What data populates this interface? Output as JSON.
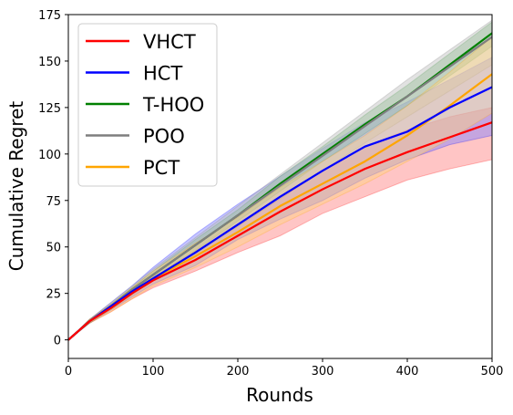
{
  "chart_data": {
    "type": "line",
    "xlabel": "Rounds",
    "ylabel": "Cumulative Regret",
    "xlim": [
      0,
      500
    ],
    "ylim": [
      -10,
      175
    ],
    "xticks": [
      0,
      100,
      200,
      300,
      400,
      500
    ],
    "yticks": [
      0,
      25,
      50,
      75,
      100,
      125,
      150,
      175
    ],
    "grid": false,
    "legend_position": "top-left",
    "x": [
      0,
      25,
      50,
      75,
      100,
      150,
      200,
      250,
      300,
      350,
      400,
      450,
      500
    ],
    "series": [
      {
        "name": "VHCT",
        "color": "#ff0000",
        "fill": "#ff7f7f",
        "values": [
          0,
          10,
          17,
          25,
          32,
          43,
          56,
          69,
          81,
          92,
          101,
          109,
          117
        ],
        "lower": [
          0,
          9,
          15,
          22,
          28,
          37,
          47,
          56,
          68,
          77,
          86,
          92,
          97
        ],
        "upper": [
          0,
          11,
          19,
          27,
          34,
          48,
          61,
          76,
          91,
          104,
          113,
          120,
          125
        ]
      },
      {
        "name": "HCT",
        "color": "#0000ff",
        "fill": "#7f7fff",
        "values": [
          0,
          10,
          18,
          26,
          33,
          47,
          62,
          77,
          91,
          104,
          112,
          125,
          136
        ],
        "lower": [
          0,
          9,
          16,
          23,
          30,
          40,
          54,
          65,
          75,
          87,
          97,
          105,
          110
        ],
        "upper": [
          0,
          11,
          20,
          29,
          39,
          57,
          73,
          88,
          103,
          117,
          128,
          140,
          152
        ]
      },
      {
        "name": "T-HOO",
        "color": "#008000",
        "fill": "#7fbf7f",
        "values": [
          0,
          10,
          18,
          27,
          35,
          51,
          67,
          84,
          100,
          116,
          131,
          148,
          165
        ],
        "lower": [
          0,
          9,
          17,
          25,
          33,
          48,
          64,
          80,
          96,
          111,
          126,
          142,
          158
        ],
        "upper": [
          0,
          11,
          19,
          28,
          37,
          54,
          70,
          88,
          104,
          121,
          137,
          154,
          171
        ]
      },
      {
        "name": "POO",
        "color": "#7f7f7f",
        "fill": "#bfbfbf",
        "values": [
          0,
          10,
          18,
          27,
          35,
          51,
          67,
          83,
          99,
          115,
          131,
          147,
          163
        ],
        "lower": [
          0,
          9,
          16,
          24,
          32,
          46,
          61,
          76,
          91,
          106,
          120,
          134,
          148
        ],
        "upper": [
          0,
          11,
          20,
          29,
          38,
          55,
          72,
          89,
          106,
          123,
          140,
          156,
          172
        ]
      },
      {
        "name": "PCT",
        "color": "#ffa500",
        "fill": "#ffd27f",
        "values": [
          0,
          10,
          17,
          25,
          33,
          45,
          58,
          72,
          84,
          96,
          110,
          126,
          143
        ],
        "lower": [
          0,
          9,
          15,
          22,
          29,
          39,
          50,
          62,
          73,
          84,
          96,
          108,
          122
        ],
        "upper": [
          0,
          11,
          19,
          28,
          37,
          52,
          66,
          82,
          96,
          110,
          126,
          144,
          163
        ]
      }
    ]
  }
}
